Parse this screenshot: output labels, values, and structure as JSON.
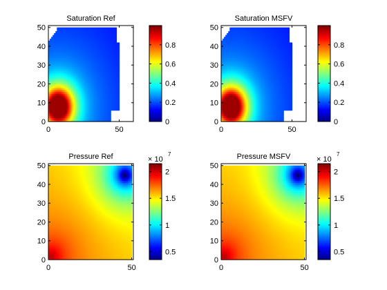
{
  "chart_data": [
    {
      "type": "heatmap",
      "title": "Saturation Ref",
      "x_ticks": [
        0,
        50
      ],
      "y_ticks": [
        0,
        10,
        20,
        30,
        40,
        50
      ],
      "xlim": [
        0,
        60
      ],
      "ylim": [
        0,
        51
      ],
      "colorbar": {
        "ticks": [
          0,
          0.2,
          0.4,
          0.6,
          0.8
        ],
        "range": [
          0,
          1
        ],
        "exponent": ""
      },
      "colormap": "jet",
      "field": "saturation"
    },
    {
      "type": "heatmap",
      "title": "Saturation MSFV",
      "x_ticks": [
        0,
        50
      ],
      "y_ticks": [
        0,
        10,
        20,
        30,
        40,
        50
      ],
      "xlim": [
        0,
        60
      ],
      "ylim": [
        0,
        51
      ],
      "colorbar": {
        "ticks": [
          0,
          0.2,
          0.4,
          0.6,
          0.8
        ],
        "range": [
          0,
          1
        ],
        "exponent": ""
      },
      "colormap": "jet",
      "field": "saturation"
    },
    {
      "type": "heatmap",
      "title": "Pressure Ref",
      "x_ticks": [
        0,
        50
      ],
      "y_ticks": [
        0,
        10,
        20,
        30,
        40,
        50
      ],
      "xlim": [
        0,
        51
      ],
      "ylim": [
        0,
        51
      ],
      "colorbar": {
        "ticks": [
          0.5,
          1,
          1.5,
          2
        ],
        "range": [
          0.35,
          2.15
        ],
        "exponent": "7",
        "multiplier": "× 10"
      },
      "colormap": "jet",
      "field": "pressure"
    },
    {
      "type": "heatmap",
      "title": "Pressure MSFV",
      "x_ticks": [
        0,
        50
      ],
      "y_ticks": [
        0,
        10,
        20,
        30,
        40,
        50
      ],
      "xlim": [
        0,
        51
      ],
      "ylim": [
        0,
        51
      ],
      "colorbar": {
        "ticks": [
          0.5,
          1,
          1.5,
          2
        ],
        "range": [
          0.35,
          2.15
        ],
        "exponent": "7",
        "multiplier": "× 10"
      },
      "colormap": "jet",
      "field": "pressure"
    }
  ]
}
